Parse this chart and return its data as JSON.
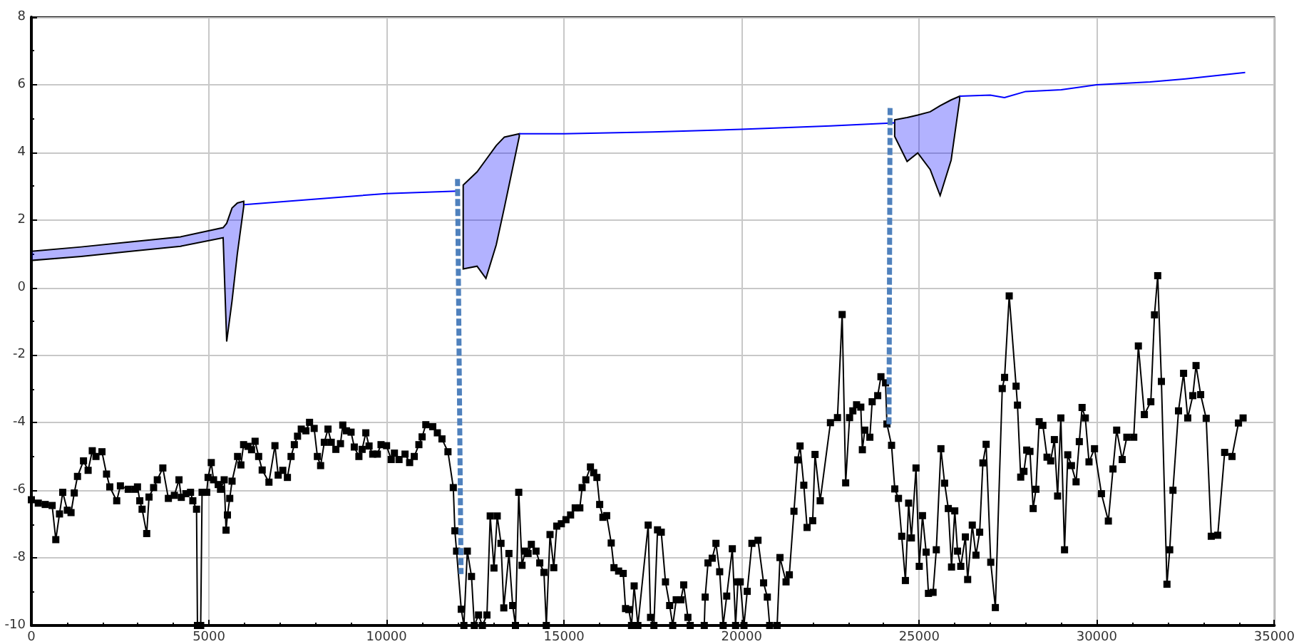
{
  "chart_data": {
    "type": "line",
    "xlim": [
      0,
      35000
    ],
    "xticks": [
      0,
      5000,
      10000,
      15000,
      20000,
      25000,
      30000,
      35000
    ],
    "ylim": [
      -10,
      8
    ],
    "yticks": [
      -10,
      -8,
      -6,
      -4,
      -2,
      0,
      2,
      4,
      6,
      8
    ],
    "grid": true,
    "series": [
      {
        "color": "#000000",
        "marker": "square",
        "x": [
          0,
          195,
          390,
          585,
          688,
          792,
          883,
          1013,
          1117,
          1208,
          1299,
          1468,
          1598,
          1715,
          1819,
          1987,
          2117,
          2208,
          2403,
          2507,
          2728,
          2923,
          2988,
          3053,
          3118,
          3248,
          3313,
          3442,
          3546,
          3702,
          3858,
          4027,
          4157,
          4222,
          4352,
          4482,
          4547,
          4651,
          4677,
          4768,
          4807,
          4937,
          4976,
          5066,
          5131,
          5261,
          5326,
          5430,
          5482,
          5521,
          5586,
          5651,
          5807,
          5900,
          5976,
          6100,
          6200,
          6300,
          6400,
          6500,
          6690,
          6859,
          6950,
          7080,
          7210,
          7313,
          7405,
          7495,
          7600,
          7730,
          7833,
          7963,
          8054,
          8145,
          8249,
          8353,
          8444,
          8574,
          8704,
          8769,
          8872,
          9002,
          9093,
          9223,
          9314,
          9418,
          9509,
          9613,
          9743,
          9846,
          10002,
          10132,
          10223,
          10353,
          10522,
          10652,
          10782,
          10912,
          11003,
          11107,
          11302,
          11432,
          11562,
          11731,
          11881,
          11926,
          11973,
          12105,
          12180,
          12276,
          12394,
          12473,
          12592,
          12700,
          12829,
          12921,
          13026,
          13118,
          13224,
          13303,
          13448,
          13553,
          13632,
          13724,
          13816,
          13908,
          13987,
          14079,
          14211,
          14316,
          14434,
          14500,
          14605,
          14710,
          14794,
          14924,
          15054,
          15184,
          15314,
          15444,
          15509,
          15613,
          15743,
          15834,
          15925,
          16003,
          16094,
          16200,
          16328,
          16406,
          16536,
          16666,
          16731,
          16822,
          16900,
          16974,
          17079,
          17369,
          17435,
          17530,
          17632,
          17737,
          17856,
          17974,
          18060,
          18158,
          18290,
          18369,
          18487,
          18553,
          18948,
          18974,
          19053,
          19172,
          19277,
          19382,
          19480,
          19580,
          19738,
          19830,
          19896,
          19961,
          20066,
          20158,
          20290,
          20461,
          20619,
          20724,
          20790,
          21000,
          21080,
          21251,
          21343,
          21474,
          21580,
          21646,
          21751,
          21843,
          22001,
          22067,
          22212,
          22501,
          22699,
          22831,
          22930,
          23040,
          23132,
          23237,
          23356,
          23400,
          23468,
          23611,
          23676,
          23832,
          23923,
          24053,
          24092,
          24222,
          24313,
          24417,
          24508,
          24612,
          24703,
          24781,
          24911,
          25002,
          25093,
          25196,
          25261,
          25391,
          25482,
          25612,
          25716,
          25820,
          25911,
          26002,
          26080,
          26171,
          26301,
          26365,
          26495,
          26599,
          26703,
          26794,
          26885,
          27015,
          27145,
          27339,
          27405,
          27535,
          27729,
          27768,
          27859,
          27950,
          28028,
          28119,
          28210,
          28288,
          28379,
          28483,
          28600,
          28703,
          28807,
          28898,
          28989,
          29093,
          29184,
          29288,
          29418,
          29509,
          29587,
          29678,
          29782,
          29937,
          30132,
          30327,
          30457,
          30561,
          30717,
          30847,
          31042,
          31172,
          31341,
          31523,
          31626,
          31717,
          31821,
          31977,
          32055,
          32146,
          32302,
          32445,
          32562,
          32705,
          32796,
          32926,
          33082,
          33225,
          33407,
          33602,
          33809,
          33991,
          34121
        ],
        "values": [
          -6.28,
          -6.38,
          -6.42,
          -6.45,
          -7.46,
          -6.7,
          -6.06,
          -6.59,
          -6.66,
          -6.08,
          -5.59,
          -5.13,
          -5.41,
          -4.83,
          -5.0,
          -4.86,
          -5.52,
          -5.9,
          -6.31,
          -5.87,
          -5.97,
          -5.97,
          -5.9,
          -6.31,
          -6.56,
          -7.28,
          -6.2,
          -5.92,
          -5.69,
          -5.34,
          -6.24,
          -6.15,
          -5.69,
          -6.21,
          -6.1,
          -6.06,
          -6.31,
          -6.56,
          -10,
          -10,
          -6.06,
          -6.06,
          -5.62,
          -5.18,
          -5.69,
          -5.83,
          -5.97,
          -5.69,
          -7.18,
          -6.73,
          -6.24,
          -5.73,
          -5.0,
          -5.25,
          -4.65,
          -4.7,
          -4.8,
          -4.55,
          -5.0,
          -5.4,
          -5.76,
          -4.68,
          -5.55,
          -5.41,
          -5.62,
          -5.0,
          -4.65,
          -4.4,
          -4.19,
          -4.24,
          -3.99,
          -4.17,
          -5.0,
          -5.27,
          -4.58,
          -4.19,
          -4.58,
          -4.79,
          -4.62,
          -4.07,
          -4.24,
          -4.28,
          -4.72,
          -5.0,
          -4.79,
          -4.3,
          -4.69,
          -4.93,
          -4.93,
          -4.65,
          -4.68,
          -5.09,
          -4.9,
          -5.09,
          -4.93,
          -5.18,
          -5.0,
          -4.65,
          -4.42,
          -4.06,
          -4.12,
          -4.3,
          -4.48,
          -4.86,
          -5.92,
          -7.2,
          -7.8,
          -9.52,
          -10,
          -7.8,
          -8.55,
          -10,
          -9.69,
          -10,
          -9.69,
          -6.76,
          -8.3,
          -6.76,
          -7.57,
          -9.48,
          -7.87,
          -9.41,
          -10,
          -6.06,
          -8.22,
          -7.8,
          -7.87,
          -7.6,
          -7.8,
          -8.15,
          -8.43,
          -10,
          -7.31,
          -8.29,
          -7.06,
          -6.99,
          -6.87,
          -6.73,
          -6.52,
          -6.52,
          -5.92,
          -5.69,
          -5.31,
          -5.48,
          -5.62,
          -6.42,
          -6.8,
          -6.75,
          -7.56,
          -8.29,
          -8.39,
          -8.46,
          -9.5,
          -9.53,
          -10,
          -8.83,
          -10,
          -7.03,
          -9.76,
          -10,
          -7.17,
          -7.24,
          -8.71,
          -9.41,
          -10,
          -9.24,
          -9.24,
          -8.8,
          -9.76,
          -10,
          -10,
          -9.16,
          -8.15,
          -8.01,
          -7.57,
          -8.41,
          -10,
          -9.13,
          -7.73,
          -10,
          -8.71,
          -8.71,
          -10,
          -8.99,
          -7.57,
          -7.48,
          -8.74,
          -9.16,
          -10,
          -10,
          -7.99,
          -8.71,
          -8.5,
          -6.62,
          -5.1,
          -4.69,
          -5.85,
          -7.1,
          -6.9,
          -4.94,
          -6.31,
          -4.0,
          -3.85,
          -0.8,
          -5.78,
          -3.85,
          -3.65,
          -3.47,
          -3.54,
          -4.8,
          -4.22,
          -4.43,
          -3.38,
          -3.2,
          -2.64,
          -2.82,
          -4.04,
          -4.67,
          -5.96,
          -6.24,
          -7.36,
          -8.67,
          -6.38,
          -7.41,
          -5.34,
          -8.25,
          -6.75,
          -7.83,
          -9.05,
          -9.02,
          -7.76,
          -4.77,
          -5.79,
          -6.54,
          -8.27,
          -6.61,
          -7.8,
          -8.25,
          -7.38,
          -8.64,
          -7.03,
          -7.92,
          -7.24,
          -5.19,
          -4.64,
          -8.13,
          -9.47,
          -2.99,
          -2.66,
          -0.25,
          -2.92,
          -3.48,
          -5.61,
          -5.44,
          -4.81,
          -4.85,
          -6.54,
          -5.97,
          -3.97,
          -4.08,
          -5.02,
          -5.13,
          -4.5,
          -6.17,
          -3.86,
          -7.76,
          -4.95,
          -5.27,
          -5.75,
          -4.56,
          -3.55,
          -3.86,
          -5.16,
          -4.77,
          -6.1,
          -6.91,
          -5.37,
          -4.22,
          -5.09,
          -4.43,
          -4.43,
          -1.73,
          -3.76,
          -3.38,
          -0.81,
          0.35,
          -2.78,
          -8.78,
          -7.76,
          -6.0,
          -3.65,
          -2.54,
          -3.86,
          -3.2,
          -2.31,
          -3.17,
          -3.87,
          -7.36,
          -7.33,
          -4.88,
          -5.0,
          -4.01,
          -3.86
        ]
      },
      {
        "color": "#0000ff",
        "marker": "none",
        "x": [
          0,
          1400,
          2800,
          4200,
          5400,
          5500,
          5650,
          5800,
          5980,
          6000,
          10000,
          12000,
          12160,
          12550,
          12800,
          13090,
          13320,
          13740,
          15000,
          17500,
          20000,
          22500,
          24300,
          24310,
          24660,
          24960,
          25310,
          25590,
          25900,
          26140,
          27000,
          27400,
          28000,
          29000,
          30000,
          31500,
          32500,
          34180
        ],
        "values": [
          null,
          null,
          null,
          null,
          null,
          null,
          null,
          null,
          null,
          2.45,
          2.78,
          2.85,
          null,
          null,
          null,
          null,
          null,
          4.55,
          4.55,
          4.6,
          4.68,
          4.78,
          4.87,
          null,
          null,
          null,
          null,
          null,
          null,
          5.66,
          5.69,
          5.62,
          5.8,
          5.85,
          6.0,
          6.08,
          6.17,
          6.36
        ],
        "lower": [
          0.8,
          0.92,
          1.07,
          1.22,
          1.47,
          -1.6,
          -0.4,
          1.0,
          2.4,
          null,
          null,
          null,
          0.55,
          0.63,
          0.27,
          1.26,
          2.37,
          4.47,
          null,
          null,
          null,
          null,
          null,
          4.47,
          3.73,
          3.98,
          3.49,
          2.72,
          3.77,
          5.56,
          null,
          null,
          null,
          null,
          null,
          null,
          null,
          null
        ],
        "upper": [
          1.07,
          1.2,
          1.35,
          1.5,
          1.77,
          1.9,
          2.35,
          2.5,
          2.55,
          null,
          null,
          null,
          3.03,
          3.42,
          3.78,
          4.2,
          4.45,
          4.55,
          null,
          null,
          null,
          null,
          null,
          4.96,
          5.03,
          5.1,
          5.2,
          5.38,
          5.55,
          5.66,
          null,
          null,
          null,
          null,
          null,
          null,
          null,
          null
        ]
      },
      {
        "color": "#4f81bd",
        "marker": "none",
        "line_style": "dashed",
        "x": [
          12000,
          12100
        ],
        "values": [
          3.21,
          -8.48
        ]
      },
      {
        "color": "#4f81bd",
        "marker": "none",
        "line_style": "dashed",
        "x": [
          24180,
          24150
        ],
        "values": [
          5.31,
          -4.14
        ]
      }
    ]
  }
}
